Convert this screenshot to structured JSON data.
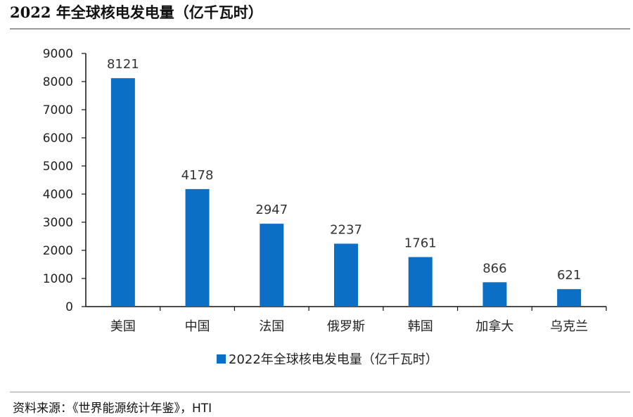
{
  "title": "2022 年全球核电发电量（亿千瓦时）",
  "source": "资料来源：《世界能源统计年鉴》，HTI",
  "chart_data": {
    "type": "bar",
    "categories": [
      "美国",
      "中国",
      "法国",
      "俄罗斯",
      "韩国",
      "加拿大",
      "乌克兰"
    ],
    "series": [
      {
        "name": "2022年全球核电发电量（亿千瓦时）",
        "values": [
          8121,
          4178,
          2947,
          2237,
          1761,
          866,
          621
        ]
      }
    ],
    "yticks": [
      0,
      1000,
      2000,
      3000,
      4000,
      5000,
      6000,
      7000,
      8000,
      9000
    ],
    "ylim": [
      0,
      9000
    ],
    "legend_position": "bottom",
    "bar_color": "#0b6fc5",
    "grid": false
  }
}
